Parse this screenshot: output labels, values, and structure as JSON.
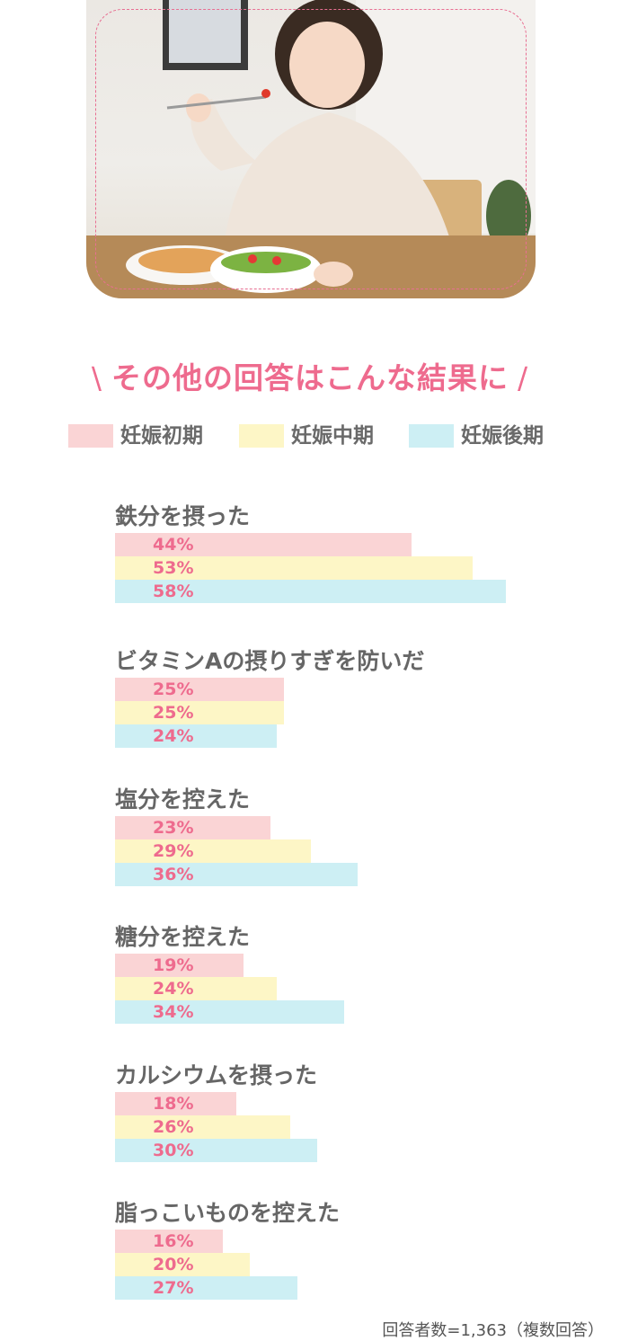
{
  "heading": {
    "text": "その他の回答はこんな結果に",
    "slash_left": "\\",
    "slash_right": "/"
  },
  "colors": {
    "accent": "#ee6b8e",
    "early": "#fad4d5",
    "mid": "#fdf6c6",
    "late": "#cdeff4"
  },
  "photo": {
    "icon": "woman-eating-salad-photo"
  },
  "chart_data": {
    "type": "bar",
    "orientation": "horizontal",
    "series": [
      {
        "name": "妊娠初期",
        "color": "#fad4d5",
        "values": [
          44,
          25,
          23,
          19,
          18,
          16
        ]
      },
      {
        "name": "妊娠中期",
        "color": "#fdf6c6",
        "values": [
          53,
          25,
          29,
          24,
          26,
          20
        ]
      },
      {
        "name": "妊娠後期",
        "color": "#cdeff4",
        "values": [
          58,
          24,
          36,
          34,
          30,
          27
        ]
      }
    ],
    "categories": [
      "鉄分を摂った",
      "ビタミンAの摂りすぎを防いだ",
      "塩分を控えた",
      "糖分を控えた",
      "カルシウムを摂った",
      "脂っこいものを控えた"
    ],
    "value_suffix": "%",
    "legend_position": "top",
    "note": "回答者数=1,363（複数回答）"
  }
}
